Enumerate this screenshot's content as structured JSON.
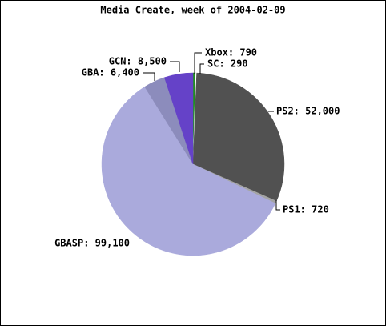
{
  "chart_data": {
    "type": "pie",
    "title": "Media Create, week of 2004-02-09",
    "values": [
      790,
      290,
      52000,
      720,
      99100,
      6400,
      8500
    ],
    "value_labels": [
      "Xbox: 790",
      "SC: 290",
      "PS2: 52,000",
      "PS1: 720",
      "GBASP: 99,100",
      "GBA: 6,400",
      "GCN: 8,500"
    ],
    "colors": [
      "#1f8f1f",
      "#ffffff",
      "#515151",
      "#a4a4a4",
      "#aaaadc",
      "#8c8cbc",
      "#6542c8"
    ]
  }
}
